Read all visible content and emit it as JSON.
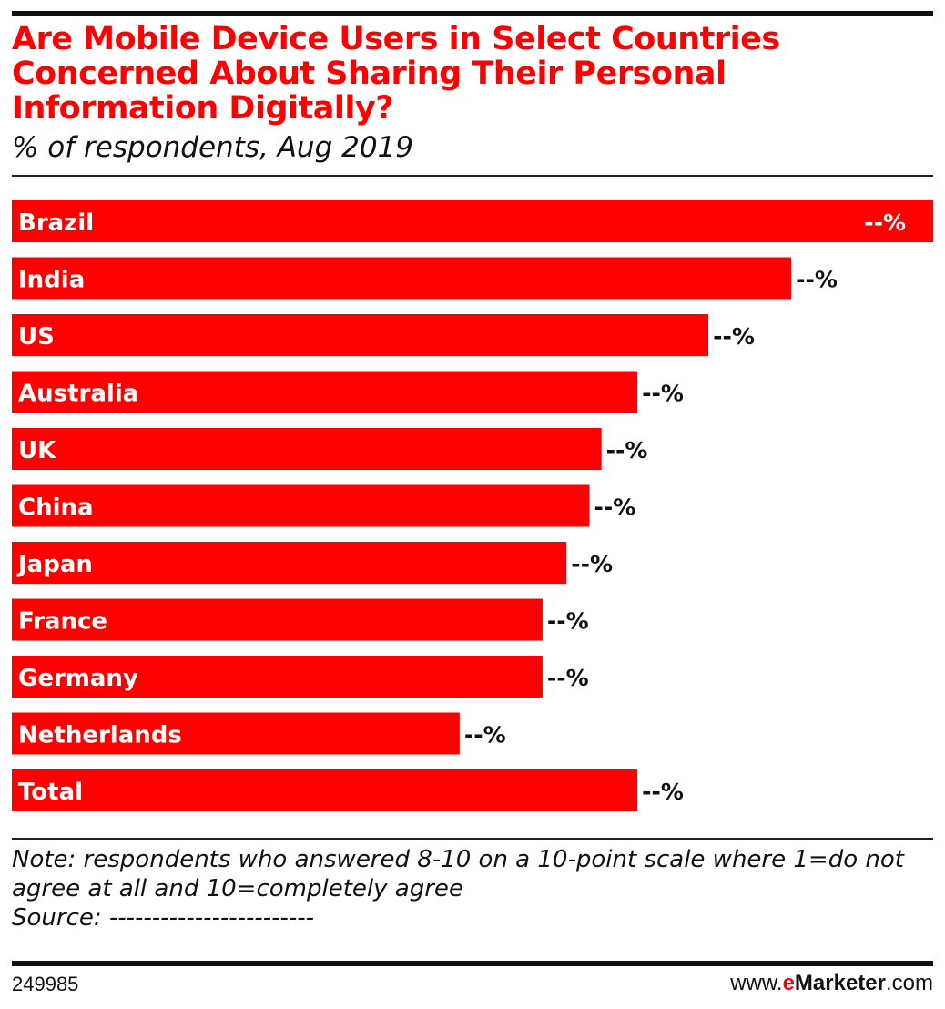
{
  "title": "Are Mobile Device Users in Select Countries Concerned About Sharing Their Personal Information Digitally?",
  "subtitle": "% of respondents, Aug 2019",
  "chart_data": {
    "type": "bar",
    "orientation": "horizontal",
    "categories": [
      "Brazil",
      "India",
      "US",
      "Australia",
      "UK",
      "China",
      "Japan",
      "France",
      "Germany",
      "Netherlands",
      "Total"
    ],
    "values": [
      100,
      84.6,
      75.6,
      67.9,
      64.0,
      62.7,
      60.2,
      57.6,
      57.6,
      48.6,
      67.9
    ],
    "value_scale": "relative bar length (Brazil = 100); actual values hidden",
    "data_labels": [
      "--%",
      "--%",
      "--%",
      "--%",
      "--%",
      "--%",
      "--%",
      "--%",
      "--%",
      "--%",
      "--%"
    ],
    "bar_color": "#ff0000"
  },
  "note": "Note: respondents who answered 8-10 on a 10-point scale where 1=do not agree at all and 10=completely agree",
  "source": "Source: ------------------------",
  "footer": {
    "id": "249985",
    "brand_prefix": "www.",
    "brand_e": "e",
    "brand_name": "Marketer",
    "brand_suffix": ".com"
  }
}
